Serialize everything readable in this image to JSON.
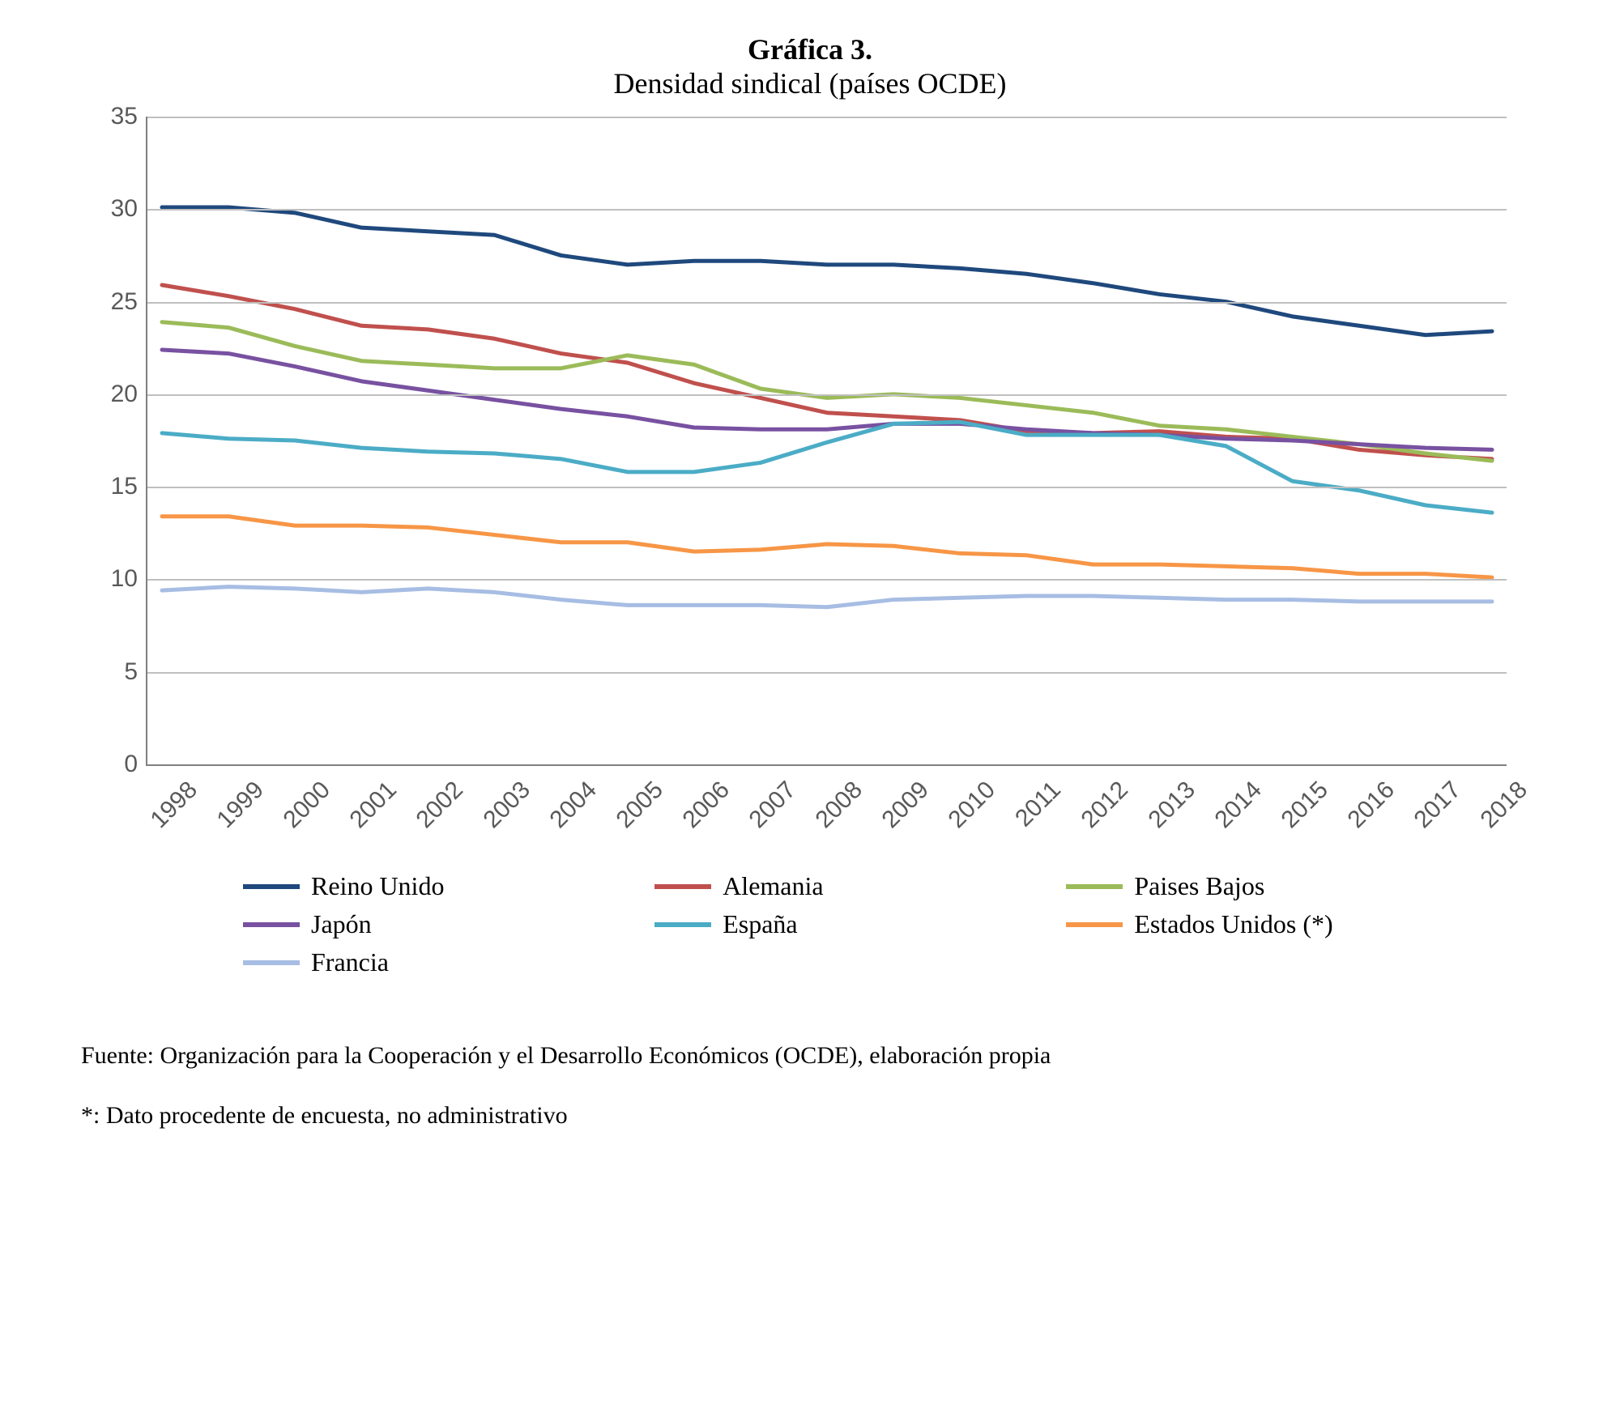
{
  "chart": {
    "type": "line",
    "title_main": "Gráfica 3.",
    "title_sub": "Densidad sindical (países OCDE)",
    "title_fontsize": 36,
    "subtitle_fontsize": 36,
    "background_color": "#ffffff",
    "grid_color": "#bfbfbf",
    "axis_color": "#808080",
    "tick_label_color": "#595959",
    "tick_fontsize": 30,
    "line_width": 5,
    "ylim": [
      0,
      35
    ],
    "ytick_step": 5,
    "x_categories": [
      "1998",
      "1999",
      "2000",
      "2001",
      "2002",
      "2003",
      "2004",
      "2005",
      "2006",
      "2007",
      "2008",
      "2009",
      "2010",
      "2011",
      "2012",
      "2013",
      "2014",
      "2015",
      "2016",
      "2017",
      "2018"
    ],
    "series": [
      {
        "key": "reino_unido",
        "label": "Reino Unido",
        "color": "#1f497d",
        "values": [
          30.1,
          30.1,
          29.8,
          29.0,
          28.8,
          28.6,
          27.5,
          27.0,
          27.2,
          27.2,
          27.0,
          27.0,
          26.8,
          26.5,
          26.0,
          25.4,
          25.0,
          24.2,
          23.7,
          23.2,
          23.4
        ]
      },
      {
        "key": "alemania",
        "label": "Alemania",
        "color": "#c0504d",
        "values": [
          25.9,
          25.3,
          24.6,
          23.7,
          23.5,
          23.0,
          22.2,
          21.7,
          20.6,
          19.8,
          19.0,
          18.8,
          18.6,
          18.0,
          17.9,
          18.0,
          17.7,
          17.6,
          17.0,
          16.7,
          16.5
        ]
      },
      {
        "key": "paises_bajos",
        "label": "Paises Bajos",
        "color": "#9bbb59",
        "values": [
          23.9,
          23.6,
          22.6,
          21.8,
          21.6,
          21.4,
          21.4,
          22.1,
          21.6,
          20.3,
          19.8,
          20.0,
          19.8,
          19.4,
          19.0,
          18.3,
          18.1,
          17.7,
          17.3,
          16.8,
          16.4
        ]
      },
      {
        "key": "japon",
        "label": "Japón",
        "color": "#7851a1",
        "values": [
          22.4,
          22.2,
          21.5,
          20.7,
          20.2,
          19.7,
          19.2,
          18.8,
          18.2,
          18.1,
          18.1,
          18.4,
          18.4,
          18.1,
          17.9,
          17.8,
          17.6,
          17.5,
          17.3,
          17.1,
          17.0
        ]
      },
      {
        "key": "espana",
        "label": "España",
        "color": "#4bacc6",
        "values": [
          17.9,
          17.6,
          17.5,
          17.1,
          16.9,
          16.8,
          16.5,
          15.8,
          15.8,
          16.3,
          17.4,
          18.4,
          18.5,
          17.8,
          17.8,
          17.8,
          17.2,
          15.3,
          14.8,
          14.0,
          13.6
        ]
      },
      {
        "key": "estados_unidos",
        "label": "Estados Unidos (*)",
        "color": "#f79646",
        "values": [
          13.4,
          13.4,
          12.9,
          12.9,
          12.8,
          12.4,
          12.0,
          12.0,
          11.5,
          11.6,
          11.9,
          11.8,
          11.4,
          11.3,
          10.8,
          10.8,
          10.7,
          10.6,
          10.3,
          10.3,
          10.1
        ]
      },
      {
        "key": "francia",
        "label": "Francia",
        "color": "#a7bde3",
        "values": [
          9.4,
          9.6,
          9.5,
          9.3,
          9.5,
          9.3,
          8.9,
          8.6,
          8.6,
          8.6,
          8.5,
          8.9,
          9.0,
          9.1,
          9.1,
          9.0,
          8.9,
          8.9,
          8.8,
          8.8,
          8.8
        ]
      }
    ],
    "legend": {
      "fontsize": 32,
      "columns": 3,
      "position": "bottom"
    },
    "footer": {
      "source": "Fuente: Organización para la Cooperación y el Desarrollo Económicos (OCDE), elaboración propia",
      "note": "*: Dato procedente de encuesta, no administrativo",
      "fontsize": 30
    }
  }
}
